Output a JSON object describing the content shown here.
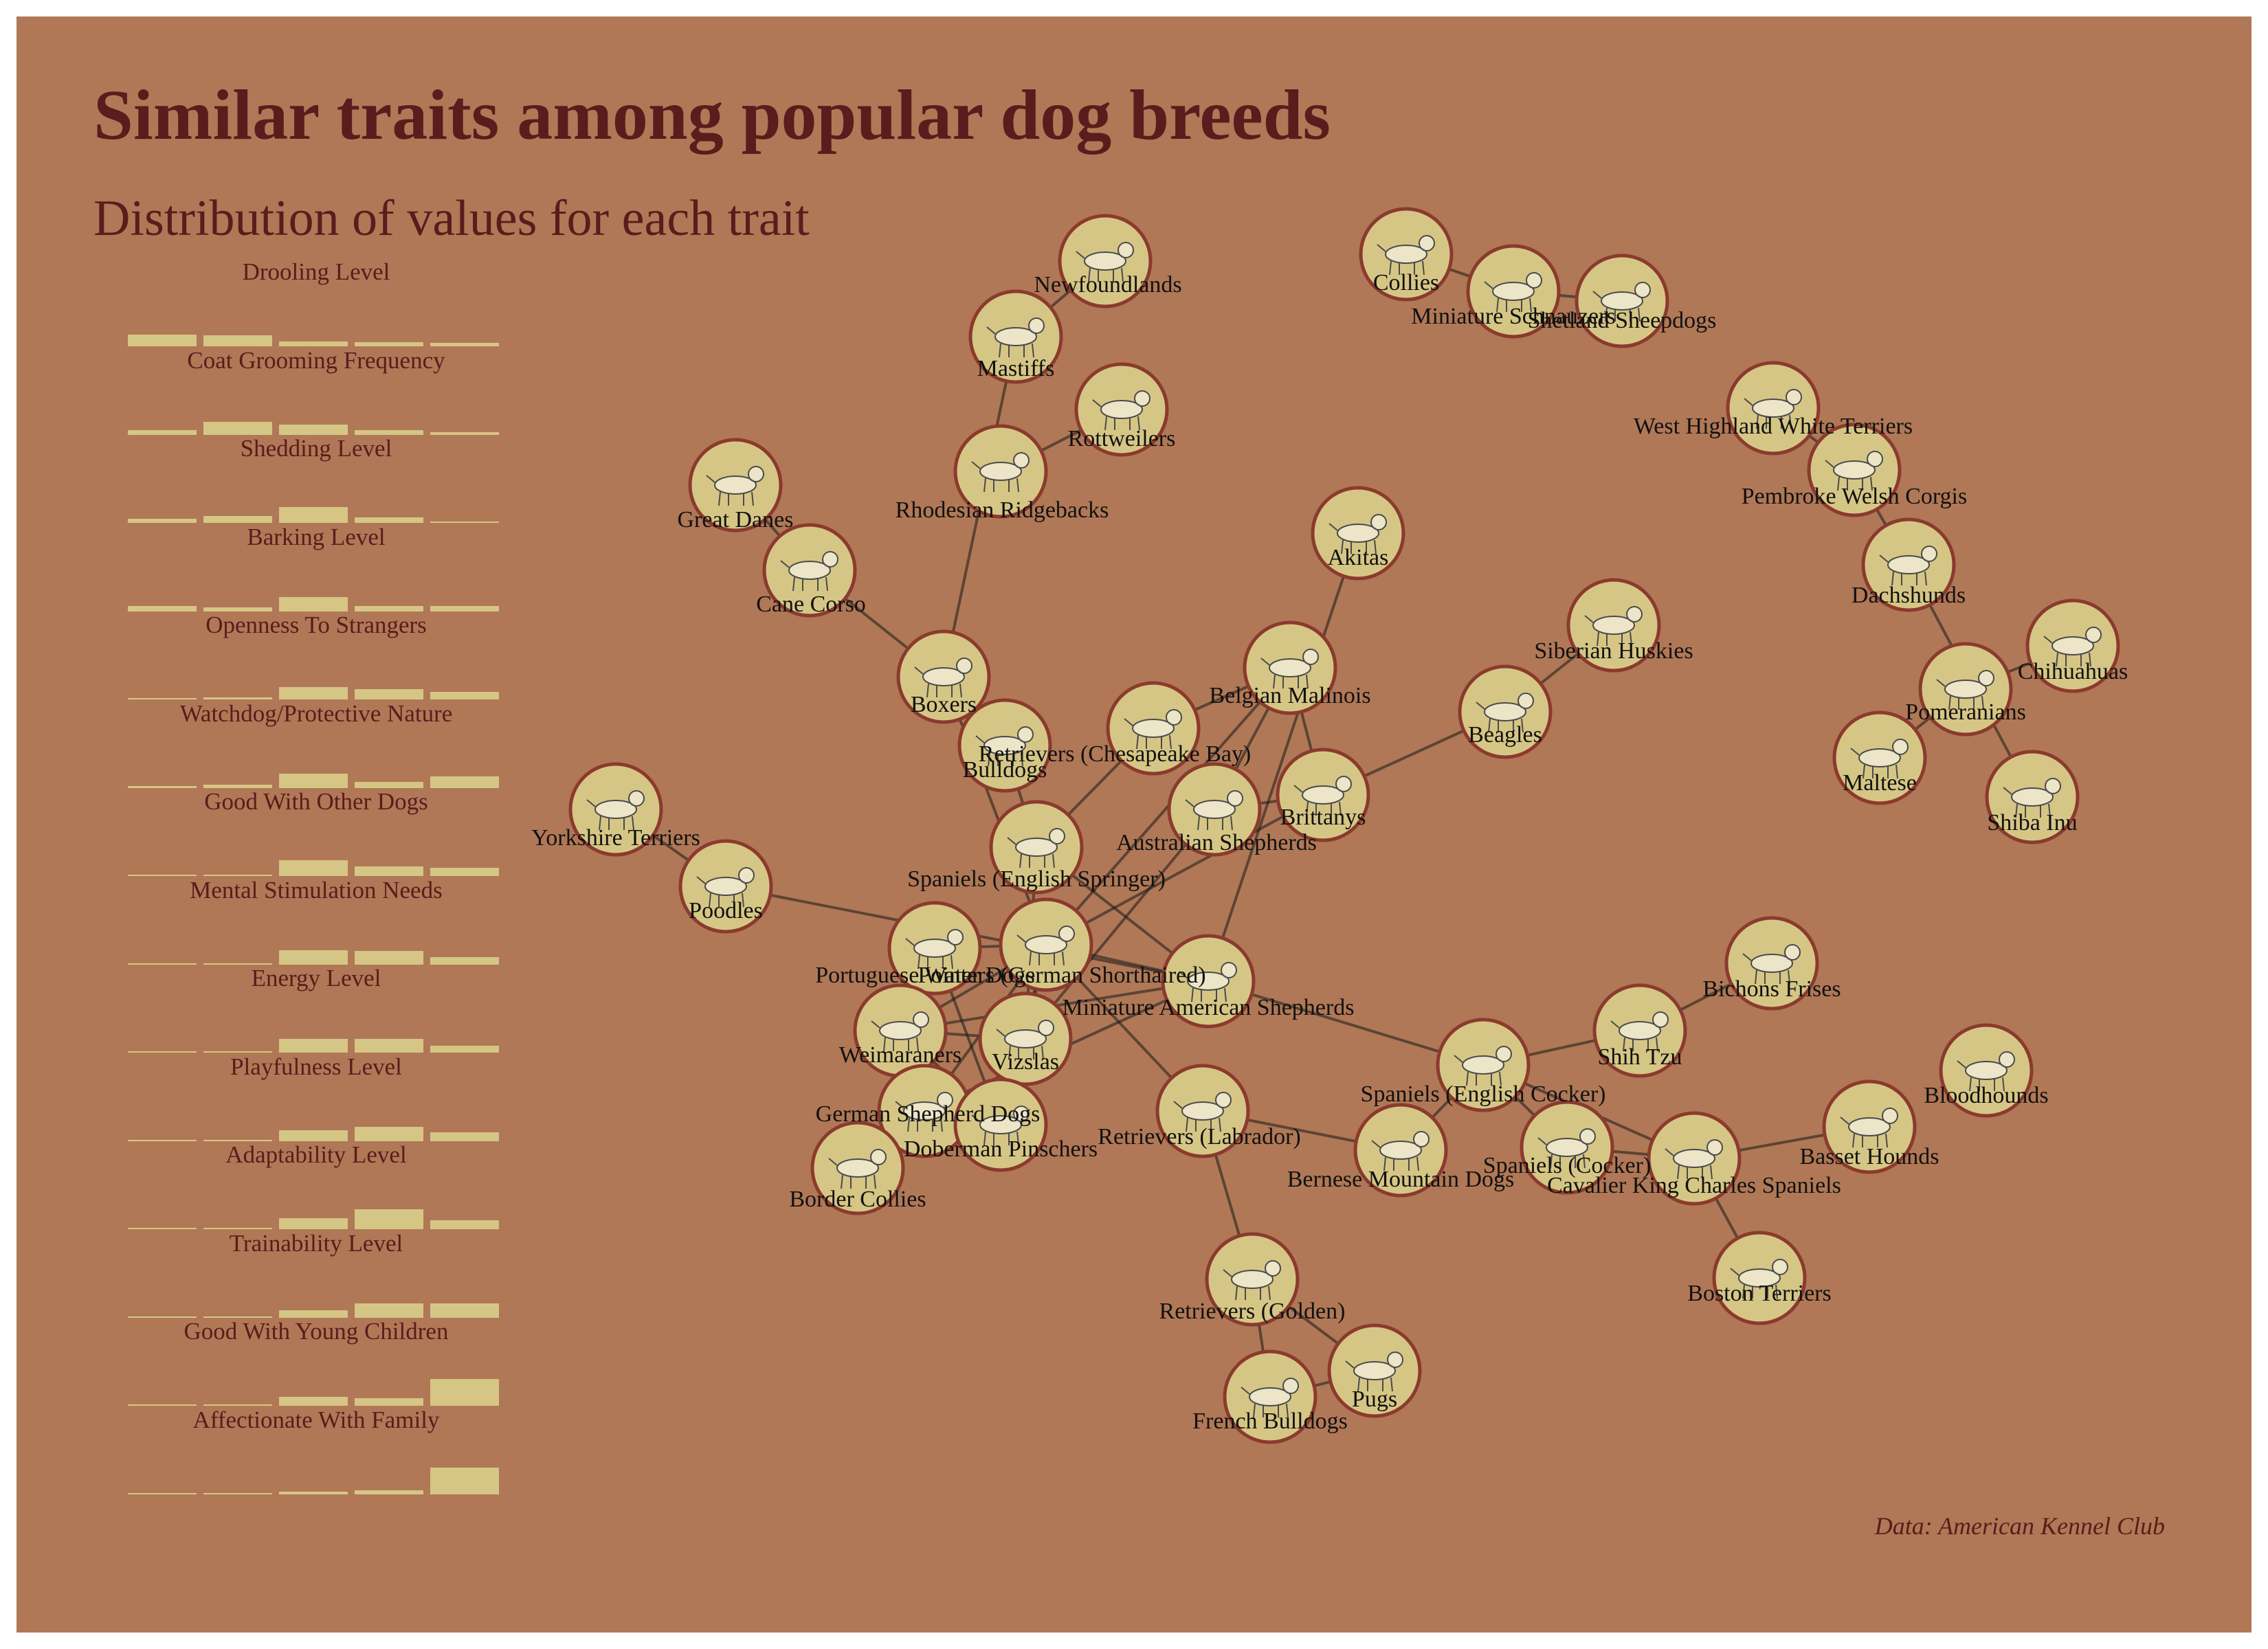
{
  "title": "Similar traits among popular dog breeds",
  "subtitle": "Distribution of values for each trait",
  "source": "Data: American Kennel Club",
  "colors": {
    "background": "#b07856",
    "title": "#5a1c1c",
    "bar": "#d6c685",
    "node_fill": "#d6c685",
    "node_ring": "#8b3a2e",
    "edge": "#1a1a1a"
  },
  "chart_data": {
    "type": "network",
    "distributions": [
      {
        "trait": "Drooling Level",
        "shares": [
          0.32,
          0.3,
          0.13,
          0.12,
          0.1
        ]
      },
      {
        "trait": "Coat Grooming Frequency",
        "shares": [
          0.13,
          0.35,
          0.27,
          0.12,
          0.06
        ]
      },
      {
        "trait": "Shedding Level",
        "shares": [
          0.12,
          0.2,
          0.45,
          0.15,
          0.04
        ]
      },
      {
        "trait": "Barking Level",
        "shares": [
          0.14,
          0.1,
          0.4,
          0.14,
          0.15
        ]
      },
      {
        "trait": "Openness To Strangers",
        "shares": [
          0.03,
          0.05,
          0.35,
          0.28,
          0.22
        ]
      },
      {
        "trait": "Watchdog/Protective Nature",
        "shares": [
          0.04,
          0.08,
          0.4,
          0.16,
          0.32
        ]
      },
      {
        "trait": "Good With Other Dogs",
        "shares": [
          0.03,
          0.02,
          0.45,
          0.26,
          0.24
        ]
      },
      {
        "trait": "Mental Stimulation Needs",
        "shares": [
          0.0,
          0.0,
          0.4,
          0.38,
          0.2
        ]
      },
      {
        "trait": "Energy Level",
        "shares": [
          0.0,
          0.02,
          0.38,
          0.38,
          0.2
        ]
      },
      {
        "trait": "Playfulness Level",
        "shares": [
          0.0,
          0.0,
          0.3,
          0.4,
          0.25
        ]
      },
      {
        "trait": "Adaptability Level",
        "shares": [
          0.0,
          0.0,
          0.3,
          0.55,
          0.25
        ]
      },
      {
        "trait": "Trainability Level",
        "shares": [
          0.0,
          0.02,
          0.2,
          0.4,
          0.4
        ]
      },
      {
        "trait": "Good With Young Children",
        "shares": [
          0.02,
          0.0,
          0.25,
          0.22,
          0.75
        ]
      },
      {
        "trait": "Affectionate With Family",
        "shares": [
          0.0,
          0.0,
          0.06,
          0.1,
          0.75
        ]
      }
    ],
    "nodes": [
      {
        "id": "newfoundlands",
        "label": "Newfoundlands"
      },
      {
        "id": "mastiffs",
        "label": "Mastiffs"
      },
      {
        "id": "rottweilers",
        "label": "Rottweilers"
      },
      {
        "id": "rhodesian",
        "label": "Rhodesian Ridgebacks"
      },
      {
        "id": "great-danes",
        "label": "Great Danes"
      },
      {
        "id": "cane-corso",
        "label": "Cane Corso"
      },
      {
        "id": "boxers",
        "label": "Boxers"
      },
      {
        "id": "bulldogs",
        "label": "Bulldogs"
      },
      {
        "id": "chesapeake",
        "label": "Retrievers (Chesapeake Bay)"
      },
      {
        "id": "belgian",
        "label": "Belgian Malinois"
      },
      {
        "id": "akitas",
        "label": "Akitas"
      },
      {
        "id": "brittanys",
        "label": "Brittanys"
      },
      {
        "id": "australian",
        "label": "Australian Shepherds"
      },
      {
        "id": "springer",
        "label": "Spaniels (English Springer)"
      },
      {
        "id": "yorkshire",
        "label": "Yorkshire Terriers"
      },
      {
        "id": "poodles",
        "label": "Poodles"
      },
      {
        "id": "portuguese",
        "label": "Portuguese Water Dogs"
      },
      {
        "id": "pointers",
        "label": "Pointers (German Shorthaired)"
      },
      {
        "id": "miniature-american",
        "label": "Miniature American Shepherds"
      },
      {
        "id": "weimaraners",
        "label": "Weimaraners"
      },
      {
        "id": "vizslas",
        "label": "Vizslas"
      },
      {
        "id": "german-shepherd",
        "label": "German Shepherd Dogs"
      },
      {
        "id": "doberman",
        "label": "Doberman Pinschers"
      },
      {
        "id": "border-collies",
        "label": "Border Collies"
      },
      {
        "id": "labrador",
        "label": "Retrievers (Labrador)"
      },
      {
        "id": "golden",
        "label": "Retrievers (Golden)"
      },
      {
        "id": "french-bulldogs",
        "label": "French Bulldogs"
      },
      {
        "id": "pugs",
        "label": "Pugs"
      },
      {
        "id": "siberian",
        "label": "Siberian Huskies"
      },
      {
        "id": "beagles",
        "label": "Beagles"
      },
      {
        "id": "collies",
        "label": "Collies"
      },
      {
        "id": "mini-schnauzers",
        "label": "Miniature Schnauzers"
      },
      {
        "id": "shetland",
        "label": "Shetland Sheepdogs"
      },
      {
        "id": "westie",
        "label": "West Highland White Terriers"
      },
      {
        "id": "corgis",
        "label": "Pembroke Welsh Corgis"
      },
      {
        "id": "dachshunds",
        "label": "Dachshunds"
      },
      {
        "id": "chihuahuas",
        "label": "Chihuahuas"
      },
      {
        "id": "pomeranians",
        "label": "Pomeranians"
      },
      {
        "id": "maltese",
        "label": "Maltese"
      },
      {
        "id": "shiba",
        "label": "Shiba Inu"
      },
      {
        "id": "bichons",
        "label": "Bichons Frises"
      },
      {
        "id": "shih-tzu",
        "label": "Shih Tzu"
      },
      {
        "id": "english-cocker",
        "label": "Spaniels (English Cocker)"
      },
      {
        "id": "bernese",
        "label": "Bernese Mountain Dogs"
      },
      {
        "id": "cocker",
        "label": "Spaniels (Cocker)"
      },
      {
        "id": "cavalier",
        "label": "Cavalier King Charles Spaniels"
      },
      {
        "id": "basset",
        "label": "Basset Hounds"
      },
      {
        "id": "bloodhounds",
        "label": "Bloodhounds"
      },
      {
        "id": "boston",
        "label": "Boston Terriers"
      }
    ],
    "edges": [
      [
        "newfoundlands",
        "mastiffs"
      ],
      [
        "mastiffs",
        "boxers"
      ],
      [
        "rottweilers",
        "rhodesian"
      ],
      [
        "great-danes",
        "cane-corso"
      ],
      [
        "cane-corso",
        "boxers"
      ],
      [
        "boxers",
        "bulldogs"
      ],
      [
        "boxers",
        "pointers"
      ],
      [
        "bulldogs",
        "springer"
      ],
      [
        "chesapeake",
        "belgian"
      ],
      [
        "chesapeake",
        "springer"
      ],
      [
        "belgian",
        "brittanys"
      ],
      [
        "belgian",
        "australian"
      ],
      [
        "belgian",
        "pointers"
      ],
      [
        "akitas",
        "miniature-american"
      ],
      [
        "brittanys",
        "australian"
      ],
      [
        "brittanys",
        "beagles"
      ],
      [
        "brittanys",
        "pointers"
      ],
      [
        "beagles",
        "siberian"
      ],
      [
        "australian",
        "vizslas"
      ],
      [
        "springer",
        "vizslas"
      ],
      [
        "springer",
        "miniature-american"
      ],
      [
        "yorkshire",
        "poodles"
      ],
      [
        "poodles",
        "miniature-american"
      ],
      [
        "portuguese",
        "pointers"
      ],
      [
        "portuguese",
        "weimaraners"
      ],
      [
        "portuguese",
        "doberman"
      ],
      [
        "pointers",
        "miniature-american"
      ],
      [
        "pointers",
        "weimaraners"
      ],
      [
        "pointers",
        "vizslas"
      ],
      [
        "pointers",
        "german-shepherd"
      ],
      [
        "pointers",
        "labrador"
      ],
      [
        "pointers",
        "doberman"
      ],
      [
        "miniature-american",
        "weimaraners"
      ],
      [
        "miniature-american",
        "english-cocker"
      ],
      [
        "miniature-american",
        "german-shepherd"
      ],
      [
        "weimaraners",
        "vizslas"
      ],
      [
        "weimaraners",
        "german-shepherd"
      ],
      [
        "weimaraners",
        "doberman"
      ],
      [
        "vizslas",
        "doberman"
      ],
      [
        "german-shepherd",
        "doberman"
      ],
      [
        "german-shepherd",
        "border-collies"
      ],
      [
        "labrador",
        "golden"
      ],
      [
        "labrador",
        "bernese"
      ],
      [
        "golden",
        "french-bulldogs"
      ],
      [
        "golden",
        "pugs"
      ],
      [
        "french-bulldogs",
        "pugs"
      ],
      [
        "collies",
        "mini-schnauzers"
      ],
      [
        "mini-schnauzers",
        "shetland"
      ],
      [
        "westie",
        "corgis"
      ],
      [
        "corgis",
        "dachshunds"
      ],
      [
        "dachshunds",
        "shiba"
      ],
      [
        "pomeranians",
        "chihuahuas"
      ],
      [
        "pomeranians",
        "maltese"
      ],
      [
        "bichons",
        "shih-tzu"
      ],
      [
        "shih-tzu",
        "english-cocker"
      ],
      [
        "english-cocker",
        "bernese"
      ],
      [
        "english-cocker",
        "cocker"
      ],
      [
        "english-cocker",
        "cavalier"
      ],
      [
        "cocker",
        "cavalier"
      ],
      [
        "cavalier",
        "basset"
      ],
      [
        "cavalier",
        "boston"
      ]
    ]
  }
}
